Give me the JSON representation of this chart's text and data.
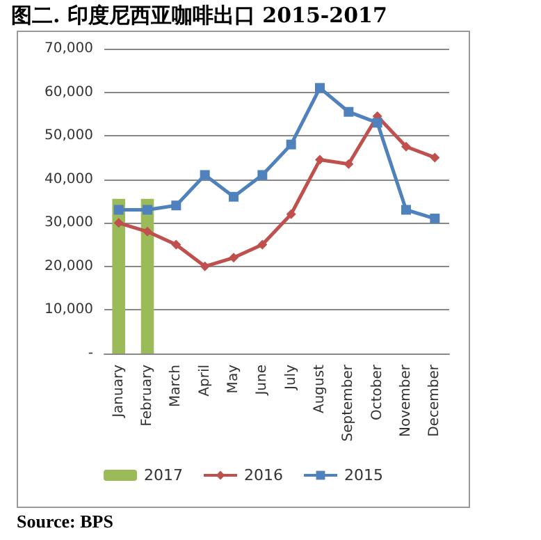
{
  "chart_data": {
    "type": "line",
    "title": "图二. 印度尼西亚咖啡出口 2015-2017",
    "categories": [
      "January",
      "February",
      "March",
      "April",
      "May",
      "June",
      "July",
      "August",
      "September",
      "October",
      "November",
      "December"
    ],
    "series": [
      {
        "name": "2017",
        "type": "bar",
        "color": "#9bbb59",
        "values": [
          35500,
          35500,
          null,
          null,
          null,
          null,
          null,
          null,
          null,
          null,
          null,
          null
        ]
      },
      {
        "name": "2016",
        "color": "#c0504d",
        "marker": "diamond",
        "values": [
          30000,
          28000,
          25000,
          20000,
          22000,
          25000,
          32000,
          44500,
          43500,
          54500,
          47500,
          45000
        ]
      },
      {
        "name": "2015",
        "color": "#4f81bd",
        "marker": "square",
        "values": [
          33000,
          33000,
          34000,
          41000,
          36000,
          41000,
          48000,
          61000,
          55500,
          53000,
          33000,
          31000
        ]
      }
    ],
    "ylim": [
      0,
      70000
    ],
    "yticks": [
      {
        "value": 0,
        "label": "-"
      },
      {
        "value": 10000,
        "label": "10,000"
      },
      {
        "value": 20000,
        "label": "20,000"
      },
      {
        "value": 30000,
        "label": "30,000"
      },
      {
        "value": 40000,
        "label": "40,000"
      },
      {
        "value": 50000,
        "label": "50,000"
      },
      {
        "value": 60000,
        "label": "60,000"
      },
      {
        "value": 70000,
        "label": "70,000"
      }
    ],
    "grid": "y",
    "legend": "bottom",
    "annotations": [
      "Source: BPS"
    ]
  }
}
